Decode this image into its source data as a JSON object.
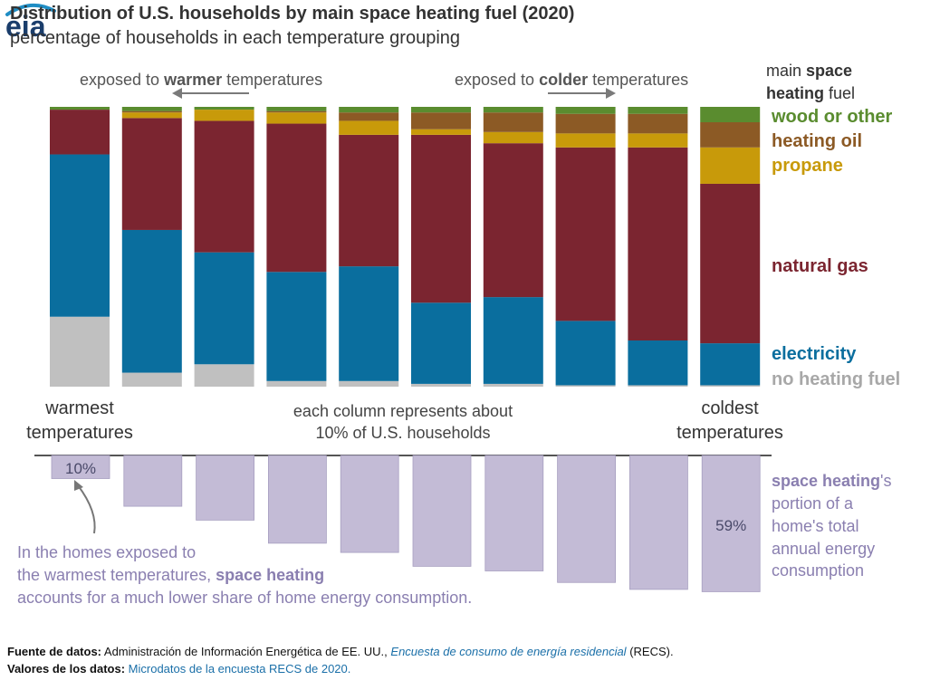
{
  "header": {
    "title": "Distribution of U.S. households by main space heating fuel (2020)",
    "subtitle": "percentage of households in each temperature grouping",
    "logo_text": "eia"
  },
  "annotations": {
    "warmer_pre": "exposed to ",
    "warmer_bold": "warmer",
    "warmer_post": " temperatures",
    "colder_pre": "exposed to ",
    "colder_bold": "colder",
    "colder_post": " temperatures",
    "warmest_line1": "warmest",
    "warmest_line2": "temperatures",
    "coldest_line1": "coldest",
    "coldest_line2": "temperatures",
    "center_line1": "each column represents about",
    "center_line2": "10% of U.S. households",
    "first_value_label": "10%",
    "last_value_label": "59%",
    "note_line1": "In the homes exposed to",
    "note_line2_pre": "the warmest temperatures, ",
    "note_line2_bold": "space heating",
    "note_line3": "accounts for a much lower share of home energy consumption."
  },
  "legend": {
    "title_pre": "main ",
    "title_bold1": "space",
    "title_bold2": "heating",
    "title_post": " fuel",
    "space_heating_bold": "space heating",
    "space_heating_rest1": "'s",
    "space_heating_rest2": "portion of a",
    "space_heating_rest3": "home's total",
    "space_heating_rest4": "annual energy",
    "space_heating_rest5": "consumption"
  },
  "chart_data": [
    {
      "type": "bar",
      "stacked": true,
      "title": "Distribution of U.S. households by main space heating fuel (2020)",
      "subtitle": "percentage of households in each temperature grouping",
      "categories": [
        "1",
        "2",
        "3",
        "4",
        "5",
        "6",
        "7",
        "8",
        "9",
        "10"
      ],
      "xlabel_left": "warmest temperatures",
      "xlabel_right": "coldest temperatures",
      "ylim": [
        0,
        100
      ],
      "series": [
        {
          "name": "no heating fuel",
          "color": "#c0c0c0",
          "values": [
            25,
            5,
            8,
            2,
            2,
            1,
            1,
            0.5,
            0.5,
            0.5
          ]
        },
        {
          "name": "electricity",
          "color": "#0a6e9e",
          "values": [
            58,
            51,
            40,
            39,
            41,
            29,
            31,
            23,
            16,
            15
          ]
        },
        {
          "name": "natural gas",
          "color": "#7b2530",
          "values": [
            16,
            40,
            47,
            53,
            47,
            60,
            55,
            62,
            69,
            57
          ]
        },
        {
          "name": "propane",
          "color": "#c89a0a",
          "values": [
            0,
            2,
            4,
            4,
            5,
            2,
            4,
            5,
            5,
            13
          ]
        },
        {
          "name": "heating oil",
          "color": "#8c5a25",
          "values": [
            0,
            0.5,
            0,
            0.5,
            3,
            6,
            7,
            7,
            7,
            9
          ]
        },
        {
          "name": "wood or other",
          "color": "#5a8c2f",
          "values": [
            1,
            1.5,
            1,
            1.5,
            2,
            2,
            2,
            2.5,
            2.5,
            5.5
          ]
        }
      ]
    },
    {
      "type": "bar",
      "orientation": "downward",
      "title": "space heating's portion of a home's total annual energy consumption",
      "categories": [
        "1",
        "2",
        "3",
        "4",
        "5",
        "6",
        "7",
        "8",
        "9",
        "10"
      ],
      "unit": "%",
      "color": "#c3bbd6",
      "values": [
        10,
        22,
        28,
        38,
        42,
        48,
        50,
        55,
        58,
        59
      ]
    }
  ],
  "footer": {
    "source_label": "Fuente de datos:",
    "source_text": " Administración de Información Energética de EE. UU., ",
    "source_link": "Encuesta de consumo de energía residencial",
    "source_tail": " (RECS).",
    "values_label": "Valores de los datos:",
    "values_link": "Microdatos de la encuesta RECS de 2020."
  }
}
